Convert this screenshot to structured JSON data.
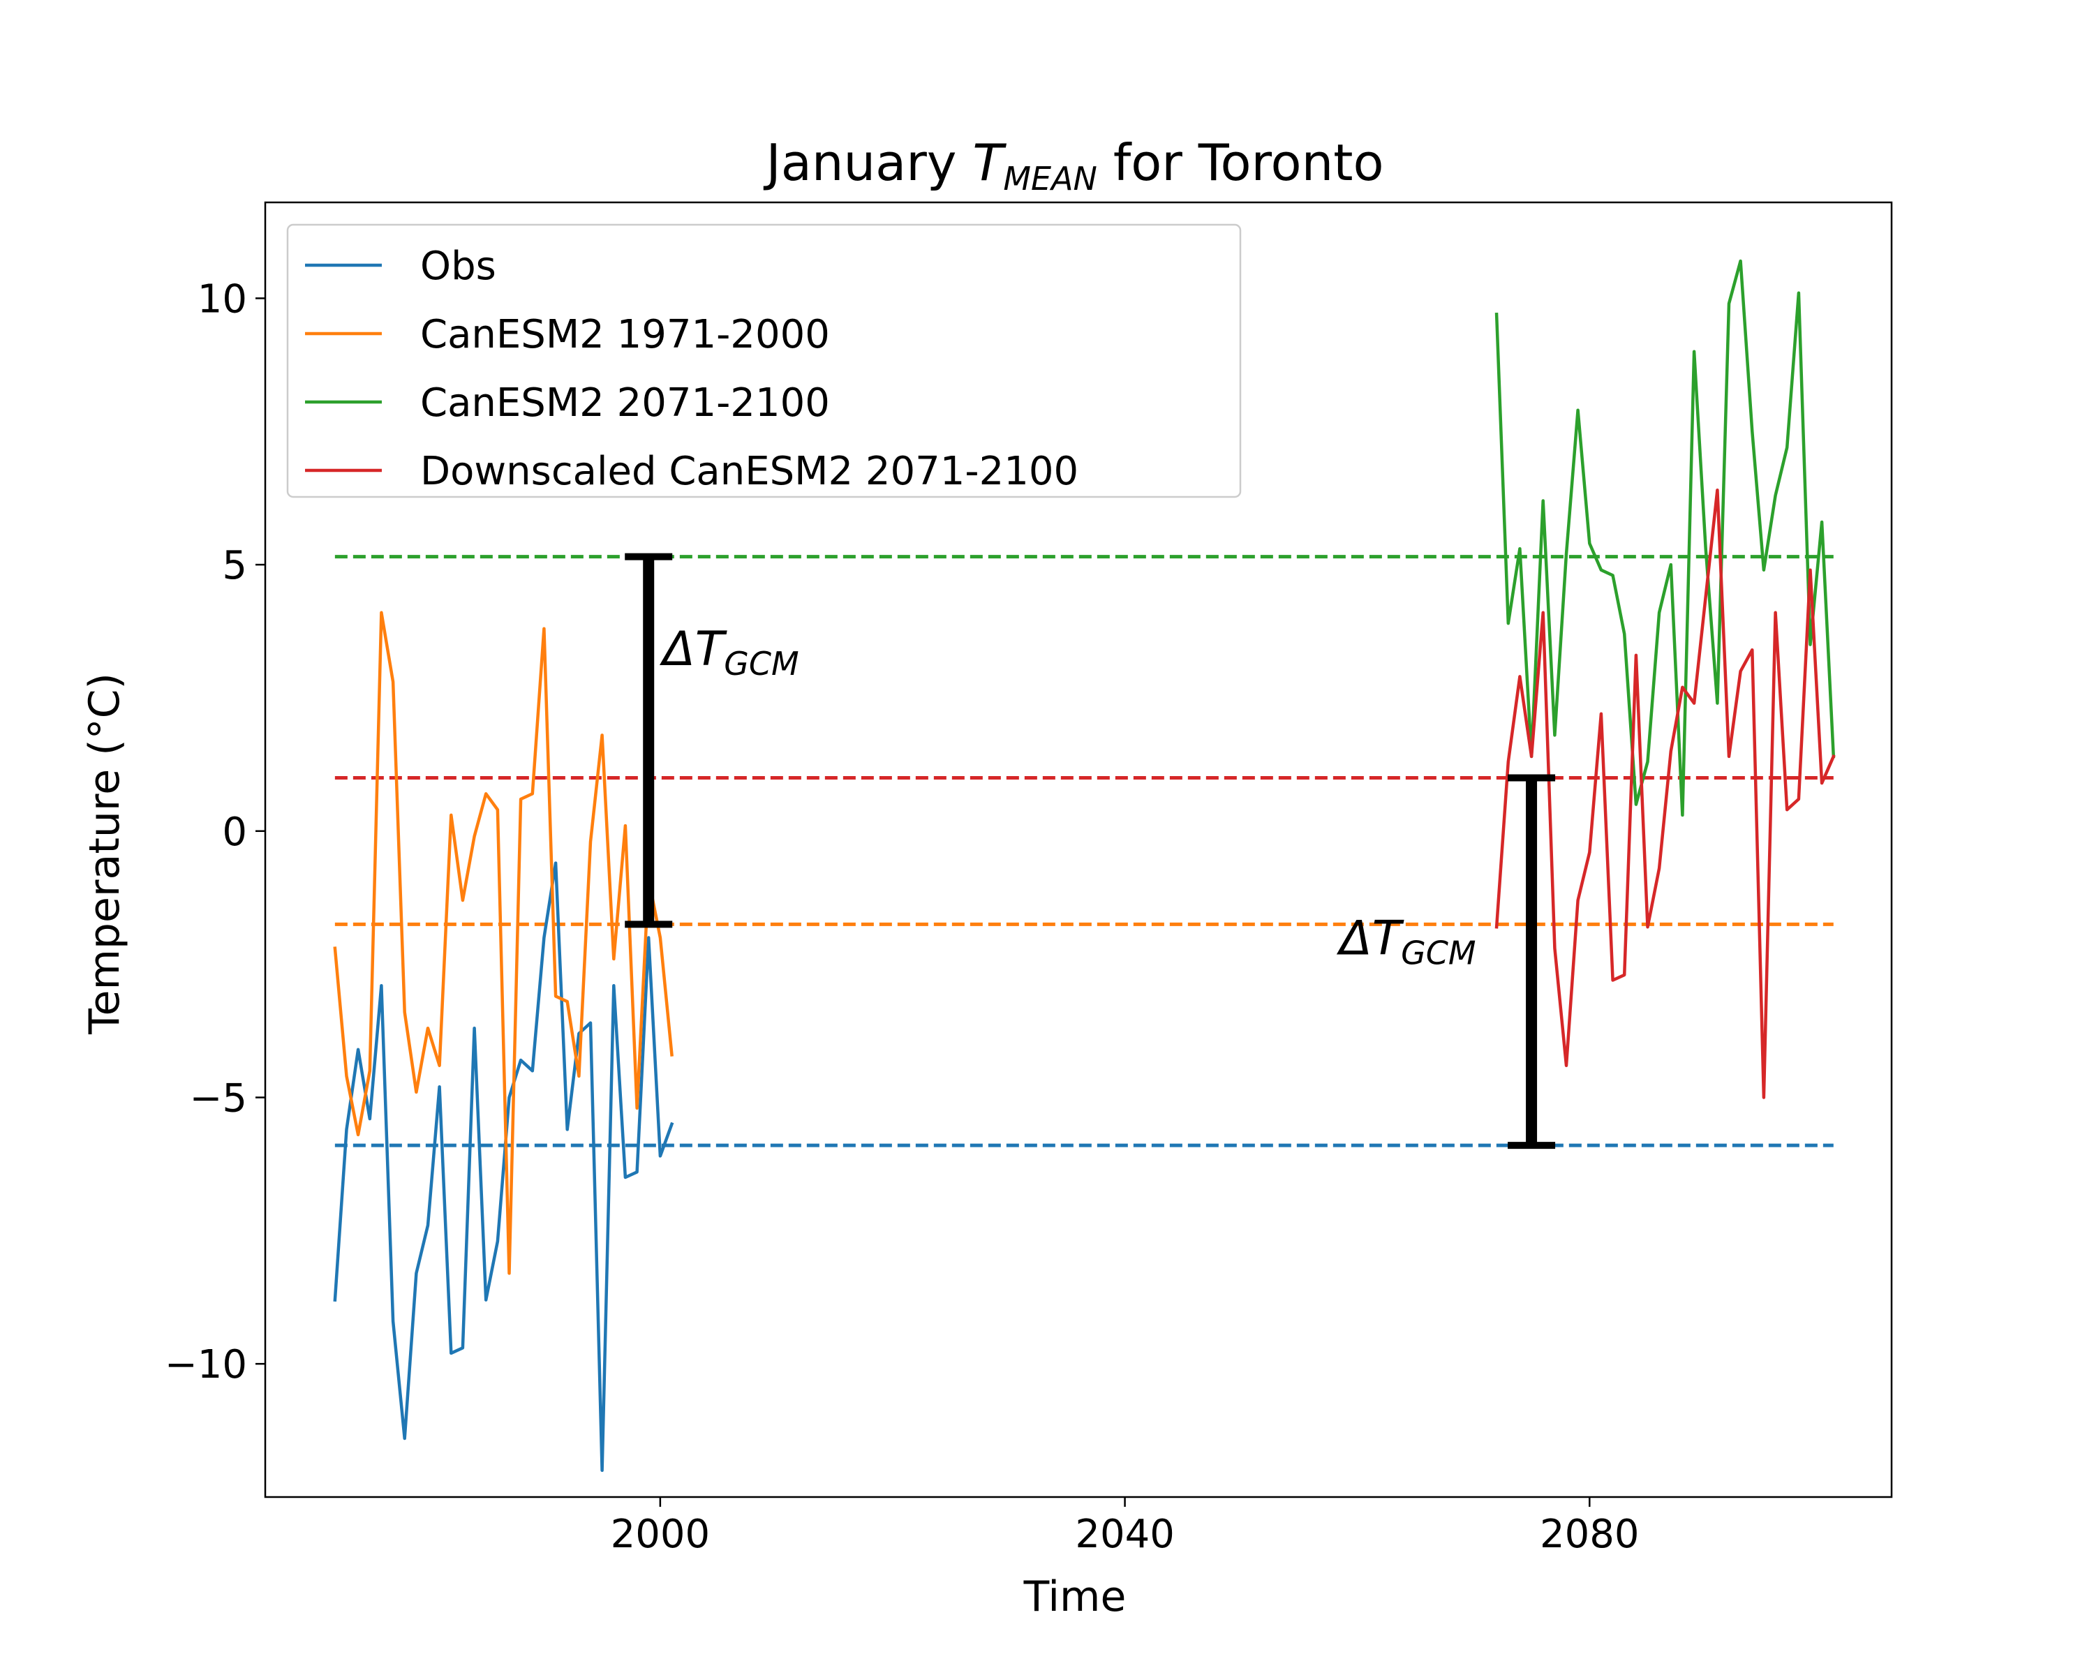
{
  "chart_data": {
    "type": "line",
    "title": "January T_MEAN for Toronto",
    "title_parts": {
      "prefix": "January ",
      "symbol": "T",
      "subscript": "MEAN",
      "suffix": " for Toronto"
    },
    "xlabel": "Time",
    "ylabel": "Temperature (°C)",
    "xlim": [
      1966,
      2106
    ],
    "ylim": [
      -12.5,
      11.8
    ],
    "xticks": [
      2000,
      2040,
      2080
    ],
    "yticks": [
      10,
      5,
      0,
      -5,
      -10
    ],
    "ytick_labels": [
      "10",
      "5",
      "0",
      "−5",
      "−10"
    ],
    "grid": false,
    "legend_position": "top-left",
    "series": [
      {
        "name": "Obs",
        "color": "#1f77b4",
        "x": [
          1972,
          1973,
          1974,
          1975,
          1976,
          1977,
          1978,
          1979,
          1980,
          1981,
          1982,
          1983,
          1984,
          1985,
          1986,
          1987,
          1988,
          1989,
          1990,
          1991,
          1992,
          1993,
          1994,
          1995,
          1996,
          1997,
          1998,
          1999,
          2000,
          2001
        ],
        "y": [
          -8.8,
          -5.6,
          -4.1,
          -5.4,
          -2.9,
          -9.2,
          -11.4,
          -8.3,
          -7.4,
          -4.8,
          -9.8,
          -9.7,
          -3.7,
          -8.8,
          -7.7,
          -5.0,
          -4.3,
          -4.5,
          -2.0,
          -0.6,
          -5.6,
          -3.8,
          -3.6,
          -12.0,
          -2.9,
          -6.5,
          -6.4,
          -2.0,
          -6.1,
          -5.5
        ]
      },
      {
        "name": "CanESM2 1971-2000",
        "color": "#ff7f0e",
        "x": [
          1972,
          1973,
          1974,
          1975,
          1976,
          1977,
          1978,
          1979,
          1980,
          1981,
          1982,
          1983,
          1984,
          1985,
          1986,
          1987,
          1988,
          1989,
          1990,
          1991,
          1992,
          1993,
          1994,
          1995,
          1996,
          1997,
          1998,
          1999,
          2000,
          2001
        ],
        "y": [
          -2.2,
          -4.6,
          -5.7,
          -4.5,
          4.1,
          2.8,
          -3.4,
          -4.9,
          -3.7,
          -4.4,
          0.3,
          -1.3,
          -0.1,
          0.7,
          0.4,
          -8.3,
          0.6,
          0.7,
          3.8,
          -3.1,
          -3.2,
          -4.6,
          -0.2,
          1.8,
          -2.4,
          0.1,
          -5.2,
          -0.9,
          -2.0,
          -4.2
        ]
      },
      {
        "name": "CanESM2 2071-2100",
        "color": "#2ca02c",
        "x": [
          2072,
          2073,
          2074,
          2075,
          2076,
          2077,
          2078,
          2079,
          2080,
          2081,
          2082,
          2083,
          2084,
          2085,
          2086,
          2087,
          2088,
          2089,
          2090,
          2091,
          2092,
          2093,
          2094,
          2095,
          2096,
          2097,
          2098,
          2099,
          2100,
          2101
        ],
        "y": [
          9.7,
          3.9,
          5.3,
          1.4,
          6.2,
          1.8,
          5.2,
          7.9,
          5.4,
          4.9,
          4.8,
          3.7,
          0.5,
          1.3,
          4.1,
          5.0,
          0.3,
          9.0,
          5.3,
          2.4,
          9.9,
          10.7,
          7.5,
          4.9,
          6.3,
          7.2,
          10.1,
          3.5,
          5.8,
          1.4
        ]
      },
      {
        "name": "Downscaled CanESM2 2071-2100",
        "color": "#d62728",
        "x": [
          2072,
          2073,
          2074,
          2075,
          2076,
          2077,
          2078,
          2079,
          2080,
          2081,
          2082,
          2083,
          2084,
          2085,
          2086,
          2087,
          2088,
          2089,
          2090,
          2091,
          2092,
          2093,
          2094,
          2095,
          2096,
          2097,
          2098,
          2099,
          2100,
          2101
        ],
        "y": [
          -1.8,
          1.3,
          2.9,
          1.4,
          4.1,
          -2.2,
          -4.4,
          -1.3,
          -0.4,
          2.2,
          -2.8,
          -2.7,
          3.3,
          -1.8,
          -0.7,
          1.5,
          2.7,
          2.4,
          4.4,
          6.4,
          1.4,
          3.0,
          3.4,
          -5.0,
          4.1,
          0.4,
          0.6,
          4.9,
          0.9,
          1.4
        ]
      }
    ],
    "reference_lines": [
      {
        "series": "CanESM2 2071-2100",
        "color": "#2ca02c",
        "y": 5.15,
        "x": [
          1972,
          2101
        ]
      },
      {
        "series": "Downscaled CanESM2 2071-2100",
        "color": "#d62728",
        "y": 1.0,
        "x": [
          1972,
          2101
        ]
      },
      {
        "series": "CanESM2 1971-2000",
        "color": "#ff7f0e",
        "y": -1.75,
        "x": [
          1972,
          2101
        ]
      },
      {
        "series": "Obs",
        "color": "#1f77b4",
        "y": -5.9,
        "x": [
          1972,
          2101
        ]
      }
    ],
    "annotations": [
      {
        "label": "ΔT_GCM",
        "symbol": "ΔT",
        "subscript": "GCM",
        "x": 1999,
        "y_low": -1.75,
        "y_high": 5.15,
        "text_side": "right"
      },
      {
        "label": "ΔT_GCM",
        "symbol": "ΔT",
        "subscript": "GCM",
        "x": 2075,
        "y_low": -5.9,
        "y_high": 1.0,
        "text_side": "left"
      }
    ]
  }
}
